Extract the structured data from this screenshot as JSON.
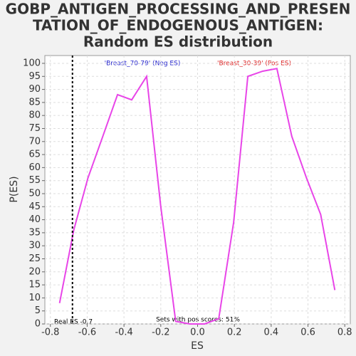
{
  "chart_data": {
    "type": "line",
    "title": [
      "GOBP_ANTIGEN_PROCESSING_AND_PRESEN",
      "TATION_OF_ENDOGENOUS_ANTIGEN:",
      "Random ES distribution"
    ],
    "x_label": "ES",
    "y_label": "P(ES)",
    "x": [
      -0.75,
      -0.673,
      -0.596,
      -0.515,
      -0.435,
      -0.358,
      -0.277,
      -0.2,
      -0.119,
      -0.042,
      0.038,
      0.115,
      0.196,
      0.273,
      0.354,
      0.431,
      0.512,
      0.592,
      0.669,
      0.746
    ],
    "series": [
      {
        "color": "#e845e8",
        "values": [
          8,
          36,
          56,
          72,
          88,
          86,
          95,
          45,
          1,
          0,
          0,
          2,
          39,
          95,
          97,
          98,
          72,
          56,
          42,
          13
        ]
      }
    ],
    "xlim": [
      -0.83,
      0.83
    ],
    "ylim": [
      0,
      103
    ],
    "xticks": [
      -0.8,
      -0.6,
      -0.4,
      -0.2,
      {
        "value": 0,
        "label": "0.0"
      },
      0.2,
      0.4,
      0.6,
      0.8
    ],
    "yticks": [
      0,
      5,
      10,
      15,
      20,
      25,
      30,
      35,
      40,
      45,
      50,
      55,
      60,
      65,
      70,
      75,
      80,
      85,
      90,
      95,
      100
    ],
    "grid": true,
    "real_es": -0.68,
    "annotations": {
      "neg": "'Breast_70-79' (Neg ES)",
      "pos": "'Breast_30-39' (Pos ES)",
      "pos_scores": "Sets with pos scores: 51%",
      "real_es_label": "Real ES -0.7"
    }
  }
}
